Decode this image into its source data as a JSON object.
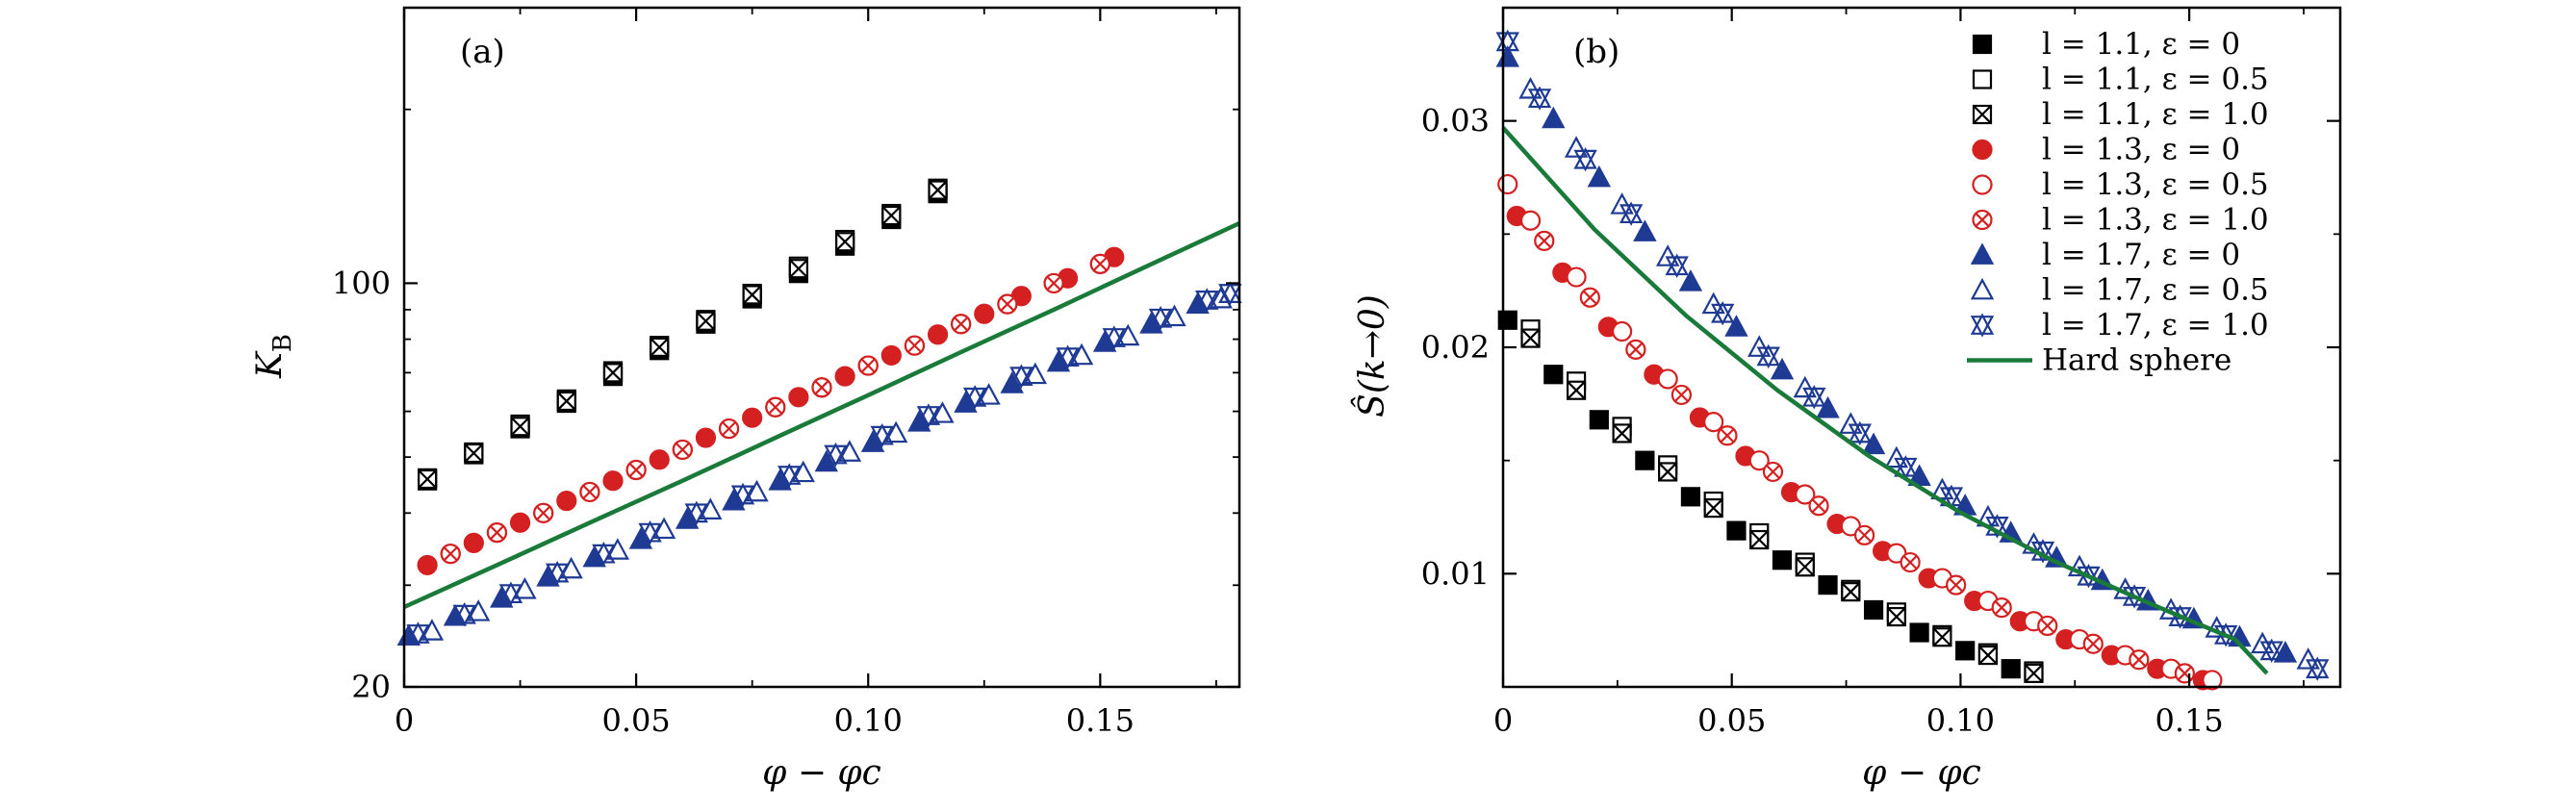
{
  "chart_data": [
    {
      "panel": "(a)",
      "type": "scatter",
      "xlabel": "φ − φc",
      "ylabel_main": "K",
      "ylabel_sub": "B",
      "xlim": [
        0,
        0.18
      ],
      "ylim": [
        20,
        300
      ],
      "yscale": "log",
      "xticks": [
        0,
        0.05,
        0.1,
        0.15
      ],
      "xtick_labels": [
        "0",
        "0.05",
        "0.10",
        "0.15"
      ],
      "yticks": [
        20,
        100
      ],
      "ytick_labels": [
        "20",
        "100"
      ],
      "series": [
        {
          "name": "l = 1.1, ε = 0",
          "marker": "square-filled",
          "color": "#000000",
          "x": [
            0.005,
            0.015,
            0.025,
            0.035,
            0.045,
            0.055,
            0.065,
            0.075,
            0.085,
            0.095,
            0.105,
            0.115
          ],
          "y": [
            45.5,
            50.5,
            56,
            62,
            69,
            76.5,
            85,
            94,
            104,
            116,
            129,
            143
          ]
        },
        {
          "name": "l = 1.1, ε = 0.5",
          "marker": "square-open",
          "color": "#000000",
          "x": [
            0.005,
            0.015,
            0.025,
            0.035,
            0.045,
            0.055,
            0.065,
            0.075,
            0.085,
            0.095,
            0.105,
            0.115
          ],
          "y": [
            46,
            51,
            57,
            63,
            70.5,
            78,
            86.5,
            96,
            107,
            119,
            132,
            146
          ]
        },
        {
          "name": "l = 1.1, ε = 1.0",
          "marker": "square-x",
          "color": "#000000",
          "x": [
            0.005,
            0.015,
            0.025,
            0.035,
            0.045,
            0.055,
            0.065,
            0.075,
            0.085,
            0.095,
            0.105,
            0.115
          ],
          "y": [
            45.8,
            50.8,
            56.5,
            62.5,
            70,
            77.5,
            86,
            95.5,
            106,
            118,
            131,
            145
          ]
        },
        {
          "name": "l = 1.3, ε = 0",
          "marker": "circle-filled",
          "color": "#d42020",
          "x": [
            0.005,
            0.015,
            0.025,
            0.035,
            0.045,
            0.055,
            0.065,
            0.075,
            0.085,
            0.095,
            0.105,
            0.115,
            0.125,
            0.133,
            0.143,
            0.153
          ],
          "y": [
            32.5,
            35.5,
            38.5,
            42,
            45.5,
            49.5,
            54,
            58.5,
            63.5,
            69,
            75,
            81.5,
            88.5,
            95,
            102,
            111
          ]
        },
        {
          "name": "l = 1.3, ε = 0.5",
          "marker": "circle-open",
          "color": "#d42020",
          "x": [
            0.01,
            0.02,
            0.03,
            0.04,
            0.05,
            0.06,
            0.07,
            0.08,
            0.09,
            0.1,
            0.11,
            0.12,
            0.13,
            0.14,
            0.15
          ],
          "y": [
            34,
            37,
            40,
            43.5,
            47.5,
            51.5,
            56,
            61,
            66,
            72,
            78,
            85,
            92,
            100,
            108
          ]
        },
        {
          "name": "l = 1.3, ε = 1.0",
          "marker": "circle-x",
          "color": "#d42020",
          "x": [
            0.01,
            0.02,
            0.03,
            0.04,
            0.05,
            0.06,
            0.07,
            0.08,
            0.09,
            0.1,
            0.11,
            0.12,
            0.13,
            0.14,
            0.15
          ],
          "y": [
            34,
            37,
            40,
            43.5,
            47.5,
            51.5,
            56,
            61,
            66,
            72,
            78,
            85,
            92,
            100,
            108
          ]
        },
        {
          "name": "l = 1.7, ε = 0",
          "marker": "triangle-filled",
          "color": "#1f3a93",
          "x": [
            0.001,
            0.011,
            0.021,
            0.031,
            0.041,
            0.051,
            0.061,
            0.071,
            0.081,
            0.091,
            0.101,
            0.111,
            0.121,
            0.131,
            0.141,
            0.151,
            0.161,
            0.171
          ],
          "y": [
            24.5,
            26.5,
            28.5,
            31,
            33.5,
            36,
            39,
            42,
            45.5,
            49,
            53,
            57.5,
            62,
            67,
            73,
            79,
            85,
            92
          ]
        },
        {
          "name": "l = 1.7, ε = 0.5",
          "marker": "triangle-open",
          "color": "#1f3a93",
          "x": [
            0.006,
            0.016,
            0.026,
            0.036,
            0.046,
            0.056,
            0.066,
            0.076,
            0.086,
            0.096,
            0.106,
            0.116,
            0.126,
            0.136,
            0.146,
            0.156,
            0.166,
            0.176
          ],
          "y": [
            25,
            27,
            29.5,
            32,
            34.5,
            37.5,
            40.5,
            43.5,
            47,
            51,
            55,
            59.5,
            64,
            69.5,
            75,
            81,
            87.5,
            94
          ]
        },
        {
          "name": "l = 1.7, ε = 1.0",
          "marker": "star-x",
          "color": "#1f3a93",
          "x": [
            0.003,
            0.013,
            0.023,
            0.033,
            0.043,
            0.053,
            0.063,
            0.073,
            0.083,
            0.093,
            0.103,
            0.113,
            0.123,
            0.133,
            0.143,
            0.153,
            0.163,
            0.173,
            0.178
          ],
          "y": [
            24.7,
            26.7,
            29,
            31.5,
            34,
            37,
            40,
            43,
            46.5,
            50.5,
            54.5,
            59,
            63.5,
            69,
            74.5,
            80.5,
            87,
            93.5,
            96
          ]
        },
        {
          "name": "Hard sphere",
          "marker": "line",
          "color": "#1a7a3a",
          "x": [
            0,
            0.02,
            0.04,
            0.06,
            0.08,
            0.1,
            0.12,
            0.14,
            0.16,
            0.18
          ],
          "y": [
            27.5,
            32.5,
            38.5,
            45.5,
            54,
            64,
            76,
            90,
            107,
            127
          ]
        }
      ]
    },
    {
      "panel": "(b)",
      "type": "scatter",
      "xlabel": "φ − φc",
      "ylabel": "Ŝ(k→0)",
      "xlim": [
        0,
        0.183
      ],
      "ylim": [
        0.005,
        0.035
      ],
      "xticks": [
        0,
        0.05,
        0.1,
        0.15
      ],
      "xtick_labels": [
        "0",
        "0.05",
        "0.10",
        "0.15"
      ],
      "yticks": [
        0.01,
        0.02,
        0.03
      ],
      "ytick_labels": [
        "0.01",
        "0.02",
        "0.03"
      ],
      "legend_position": "top-right",
      "series": [
        {
          "name": "l = 1.1, ε = 0",
          "legend_label": "l = 1.1, ε = 0",
          "marker": "square-filled",
          "color": "#000000",
          "x": [
            0.001,
            0.011,
            0.021,
            0.031,
            0.041,
            0.051,
            0.061,
            0.071,
            0.081,
            0.091,
            0.101,
            0.111
          ],
          "y": [
            0.0212,
            0.0188,
            0.0168,
            0.015,
            0.0134,
            0.0119,
            0.0106,
            0.0095,
            0.0084,
            0.0074,
            0.0066,
            0.0058
          ]
        },
        {
          "name": "l = 1.1, ε = 0.5",
          "legend_label": "l = 1.1, ε = 0.5",
          "marker": "square-open",
          "color": "#000000",
          "x": [
            0.006,
            0.016,
            0.026,
            0.036,
            0.046,
            0.056,
            0.066,
            0.076,
            0.086,
            0.096,
            0.106,
            0.116
          ],
          "y": [
            0.0208,
            0.0185,
            0.0165,
            0.0148,
            0.0132,
            0.0118,
            0.0105,
            0.0093,
            0.0083,
            0.0073,
            0.0065,
            0.0057
          ]
        },
        {
          "name": "l = 1.1, ε = 1.0",
          "legend_label": "l = 1.1, ε = 1.0",
          "marker": "square-x",
          "color": "#000000",
          "x": [
            0.006,
            0.016,
            0.026,
            0.036,
            0.046,
            0.056,
            0.066,
            0.076,
            0.086,
            0.096,
            0.106,
            0.116
          ],
          "y": [
            0.0204,
            0.0181,
            0.0162,
            0.0145,
            0.0129,
            0.0115,
            0.0103,
            0.0092,
            0.0081,
            0.0072,
            0.0064,
            0.0056
          ]
        },
        {
          "name": "l = 1.3, ε = 0",
          "legend_label": "l = 1.3, ε = 0",
          "marker": "circle-filled",
          "color": "#d42020",
          "x": [
            0.003,
            0.013,
            0.023,
            0.033,
            0.043,
            0.053,
            0.063,
            0.073,
            0.083,
            0.093,
            0.103,
            0.113,
            0.123,
            0.133,
            0.143,
            0.153
          ],
          "y": [
            0.0258,
            0.0233,
            0.0209,
            0.0188,
            0.0169,
            0.0152,
            0.0136,
            0.0122,
            0.011,
            0.0098,
            0.0088,
            0.0079,
            0.0071,
            0.0064,
            0.0058,
            0.0053
          ]
        },
        {
          "name": "l = 1.3, ε = 0.5",
          "legend_label": "l = 1.3, ε = 0.5",
          "marker": "circle-open",
          "color": "#d42020",
          "x": [
            0.001,
            0.006,
            0.016,
            0.026,
            0.036,
            0.046,
            0.056,
            0.066,
            0.076,
            0.086,
            0.096,
            0.106,
            0.116,
            0.126,
            0.136,
            0.146,
            0.155
          ],
          "y": [
            0.0272,
            0.0256,
            0.0231,
            0.0207,
            0.0186,
            0.0167,
            0.015,
            0.0135,
            0.0121,
            0.0109,
            0.0098,
            0.0088,
            0.0079,
            0.0071,
            0.0064,
            0.0058,
            0.0053
          ]
        },
        {
          "name": "l = 1.3, ε = 1.0",
          "legend_label": "l = 1.3, ε = 1.0",
          "marker": "circle-x",
          "color": "#d42020",
          "x": [
            0.009,
            0.019,
            0.029,
            0.039,
            0.049,
            0.059,
            0.069,
            0.079,
            0.089,
            0.099,
            0.109,
            0.119,
            0.129,
            0.139,
            0.149
          ],
          "y": [
            0.0247,
            0.0222,
            0.0199,
            0.0179,
            0.0161,
            0.0145,
            0.013,
            0.0117,
            0.0105,
            0.0095,
            0.0085,
            0.0077,
            0.0069,
            0.0062,
            0.0056
          ]
        },
        {
          "name": "l = 1.7, ε = 0",
          "legend_label": "l = 1.7, ε = 0",
          "marker": "triangle-filled",
          "color": "#1f3a93",
          "x": [
            0.001,
            0.011,
            0.021,
            0.031,
            0.041,
            0.051,
            0.061,
            0.071,
            0.081,
            0.091,
            0.101,
            0.111,
            0.121,
            0.131,
            0.141,
            0.151,
            0.161,
            0.171
          ],
          "y": [
            0.0328,
            0.0301,
            0.0275,
            0.0251,
            0.0229,
            0.0209,
            0.019,
            0.0173,
            0.0157,
            0.0143,
            0.013,
            0.0118,
            0.0107,
            0.0097,
            0.0088,
            0.008,
            0.0072,
            0.0065
          ]
        },
        {
          "name": "l = 1.7, ε = 0.5",
          "legend_label": "l = 1.7, ε = 0.5",
          "marker": "triangle-open",
          "color": "#1f3a93",
          "x": [
            0.006,
            0.016,
            0.026,
            0.036,
            0.046,
            0.056,
            0.066,
            0.076,
            0.086,
            0.096,
            0.106,
            0.116,
            0.126,
            0.136,
            0.146,
            0.156,
            0.166,
            0.176
          ],
          "y": [
            0.0314,
            0.0288,
            0.0263,
            0.024,
            0.0219,
            0.02,
            0.0182,
            0.0166,
            0.0151,
            0.0137,
            0.0125,
            0.0113,
            0.0103,
            0.0093,
            0.0084,
            0.0076,
            0.0069,
            0.0062
          ]
        },
        {
          "name": "l = 1.7, ε = 1.0",
          "legend_label": "l = 1.7, ε = 1.0",
          "marker": "star-x",
          "color": "#1f3a93",
          "x": [
            0.001,
            0.008,
            0.018,
            0.028,
            0.038,
            0.048,
            0.058,
            0.068,
            0.078,
            0.088,
            0.098,
            0.108,
            0.118,
            0.128,
            0.138,
            0.148,
            0.158,
            0.168,
            0.178
          ],
          "y": [
            0.0335,
            0.031,
            0.0283,
            0.0259,
            0.0236,
            0.0215,
            0.0196,
            0.0178,
            0.0162,
            0.0147,
            0.0134,
            0.0121,
            0.011,
            0.0099,
            0.009,
            0.0081,
            0.0073,
            0.0066,
            0.0058
          ]
        },
        {
          "name": "Hard sphere",
          "legend_label": "Hard sphere",
          "marker": "line",
          "color": "#1a7a3a",
          "x": [
            0,
            0.02,
            0.04,
            0.06,
            0.08,
            0.1,
            0.12,
            0.14,
            0.16,
            0.167
          ],
          "y": [
            0.0297,
            0.0252,
            0.0214,
            0.0181,
            0.0152,
            0.0127,
            0.0106,
            0.0088,
            0.0071,
            0.0056
          ]
        }
      ]
    }
  ]
}
